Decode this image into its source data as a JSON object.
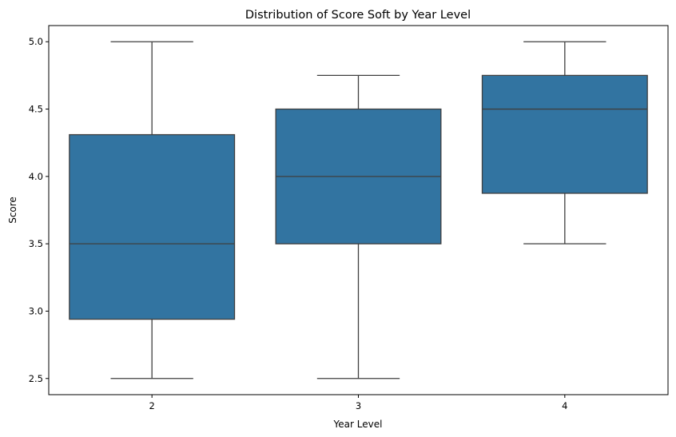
{
  "chart_data": {
    "type": "box",
    "title": "Distribution of Score Soft by Year Level",
    "xlabel": "Year Level",
    "ylabel": "Score",
    "ylim": [
      2.38,
      5.12
    ],
    "yticks": [
      "2.5",
      "3.0",
      "3.5",
      "4.0",
      "4.5",
      "5.0"
    ],
    "categories": [
      "2",
      "3",
      "4"
    ],
    "boxes": [
      {
        "category": "2",
        "whisker_low": 2.5,
        "q1": 2.94,
        "median": 3.5,
        "q3": 4.31,
        "whisker_high": 5.0
      },
      {
        "category": "3",
        "whisker_low": 2.5,
        "q1": 3.5,
        "median": 4.0,
        "q3": 4.5,
        "whisker_high": 4.75
      },
      {
        "category": "4",
        "whisker_low": 3.5,
        "q1": 3.875,
        "median": 4.5,
        "q3": 4.75,
        "whisker_high": 5.0
      }
    ],
    "grid": false,
    "legend": "none",
    "colors": {
      "box_fill": "#3274a1",
      "line": "#3f3f3f"
    }
  }
}
